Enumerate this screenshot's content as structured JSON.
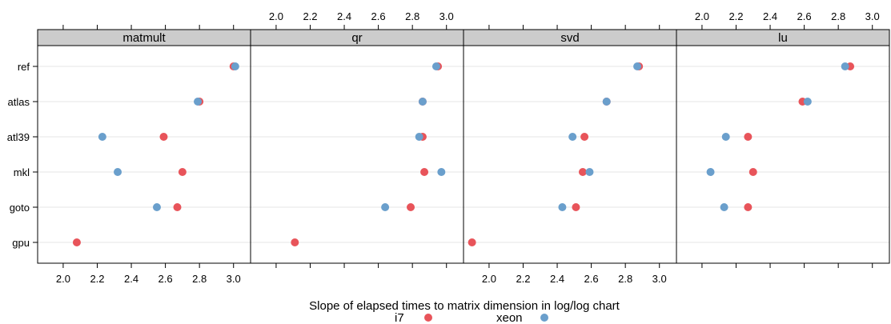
{
  "chart_data": {
    "type": "scatter",
    "xlabel": "Slope of elapsed times to matrix dimension in log/log chart",
    "xlim": [
      1.85,
      3.1
    ],
    "x_ticks": [
      "2.0",
      "2.2",
      "2.4",
      "2.6",
      "2.8",
      "3.0"
    ],
    "categories": [
      "ref",
      "atlas",
      "atl39",
      "mkl",
      "goto",
      "gpu"
    ],
    "panels": [
      "matmult",
      "qr",
      "svd",
      "lu"
    ],
    "grid": true,
    "legend": {
      "position": "bottom",
      "entries": [
        {
          "name": "i7",
          "color": "#E8545A"
        },
        {
          "name": "xeon",
          "color": "#6A9FCC"
        }
      ]
    },
    "series": [
      {
        "name": "i7",
        "color": "#E8545A",
        "panels": {
          "matmult": [
            3.0,
            2.8,
            2.59,
            2.7,
            2.67,
            2.08
          ],
          "qr": [
            2.95,
            2.86,
            2.86,
            2.87,
            2.79,
            2.11
          ],
          "svd": [
            2.88,
            2.69,
            2.56,
            2.55,
            2.51,
            1.9
          ],
          "lu": [
            2.87,
            2.59,
            2.27,
            2.3,
            2.27,
            null
          ]
        }
      },
      {
        "name": "xeon",
        "color": "#6A9FCC",
        "panels": {
          "matmult": [
            3.01,
            2.79,
            2.23,
            2.32,
            2.55,
            null
          ],
          "qr": [
            2.94,
            2.86,
            2.84,
            2.97,
            2.64,
            null
          ],
          "svd": [
            2.87,
            2.69,
            2.49,
            2.59,
            2.43,
            null
          ],
          "lu": [
            2.84,
            2.62,
            2.14,
            2.05,
            2.13,
            null
          ]
        }
      }
    ]
  }
}
